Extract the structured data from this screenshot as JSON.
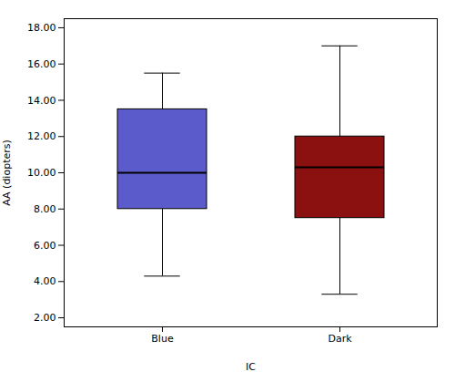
{
  "chart_data": {
    "type": "box",
    "categories": [
      "Blue",
      "Dark"
    ],
    "whisker_min": [
      4.3,
      3.3
    ],
    "q1": [
      8.0,
      7.5
    ],
    "median": [
      10.0,
      10.3
    ],
    "q3": [
      13.5,
      12.0
    ],
    "whisker_max": [
      15.5,
      17.0
    ],
    "colors": [
      "#5B5BCC",
      "#8B1010"
    ],
    "xlabel": "IC",
    "ylabel": "AA (diopters)",
    "ylim": [
      1.5,
      18.5
    ],
    "yticks": [
      {
        "value": 2.0,
        "label": "2.00"
      },
      {
        "value": 4.0,
        "label": "4.00"
      },
      {
        "value": 6.0,
        "label": "6.00"
      },
      {
        "value": 8.0,
        "label": "8.00"
      },
      {
        "value": 10.0,
        "label": "10.00"
      },
      {
        "value": 12.0,
        "label": "12.00"
      },
      {
        "value": 14.0,
        "label": "14.00"
      },
      {
        "value": 16.0,
        "label": "16.00"
      },
      {
        "value": 18.0,
        "label": "18.00"
      }
    ],
    "grid": false
  }
}
